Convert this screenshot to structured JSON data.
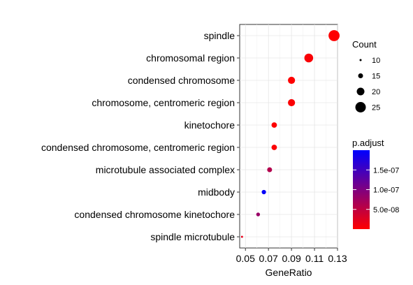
{
  "chart_data": {
    "type": "scatter",
    "title": "",
    "xlabel": "GeneRatio",
    "ylabel": "",
    "xlim": [
      0.045,
      0.13
    ],
    "x_ticks": [
      0.05,
      0.07,
      0.09,
      0.11,
      0.13
    ],
    "x_tick_labels": [
      "0.05",
      "0.07",
      "0.09",
      "0.11",
      "0.13"
    ],
    "grid": true,
    "legend_position": "right",
    "categories": [
      "spindle",
      "chromosomal region",
      "condensed chromosome",
      "chromosome, centromeric region",
      "kinetochore",
      "condensed chromosome, centromeric region",
      "microtubule associated complex",
      "midbody",
      "condensed chromosome kinetochore",
      "spindle microtubule"
    ],
    "points": [
      {
        "category": "spindle",
        "gene_ratio": 0.127,
        "count": 26,
        "p_adjust": 5e-10
      },
      {
        "category": "chromosomal region",
        "gene_ratio": 0.105,
        "count": 22,
        "p_adjust": 5e-09
      },
      {
        "category": "condensed chromosome",
        "gene_ratio": 0.09,
        "count": 19,
        "p_adjust": 1e-09
      },
      {
        "category": "chromosome, centromeric region",
        "gene_ratio": 0.09,
        "count": 19,
        "p_adjust": 3e-09
      },
      {
        "category": "kinetochore",
        "gene_ratio": 0.075,
        "count": 16,
        "p_adjust": 1e-09
      },
      {
        "category": "condensed chromosome, centromeric region",
        "gene_ratio": 0.075,
        "count": 16,
        "p_adjust": 2e-09
      },
      {
        "category": "microtubule associated complex",
        "gene_ratio": 0.071,
        "count": 15,
        "p_adjust": 6e-08
      },
      {
        "category": "midbody",
        "gene_ratio": 0.066,
        "count": 14,
        "p_adjust": 1.95e-07
      },
      {
        "category": "condensed chromosome kinetochore",
        "gene_ratio": 0.061,
        "count": 13,
        "p_adjust": 8e-08
      },
      {
        "category": "spindle microtubule",
        "gene_ratio": 0.047,
        "count": 10,
        "p_adjust": 2e-08
      }
    ],
    "size_legend": {
      "title": "Count",
      "values": [
        10,
        15,
        20,
        25
      ],
      "labels": [
        "10",
        "15",
        "20",
        "25"
      ]
    },
    "color_legend": {
      "title": "p.adjust",
      "low_color": "#FF0000",
      "high_color": "#0000FF",
      "range": [
        0,
        2e-07
      ],
      "ticks": [
        5e-08,
        1e-07,
        1.5e-07
      ],
      "tick_labels": [
        "5.0e-08",
        "1.0e-07",
        "1.5e-07"
      ]
    }
  }
}
